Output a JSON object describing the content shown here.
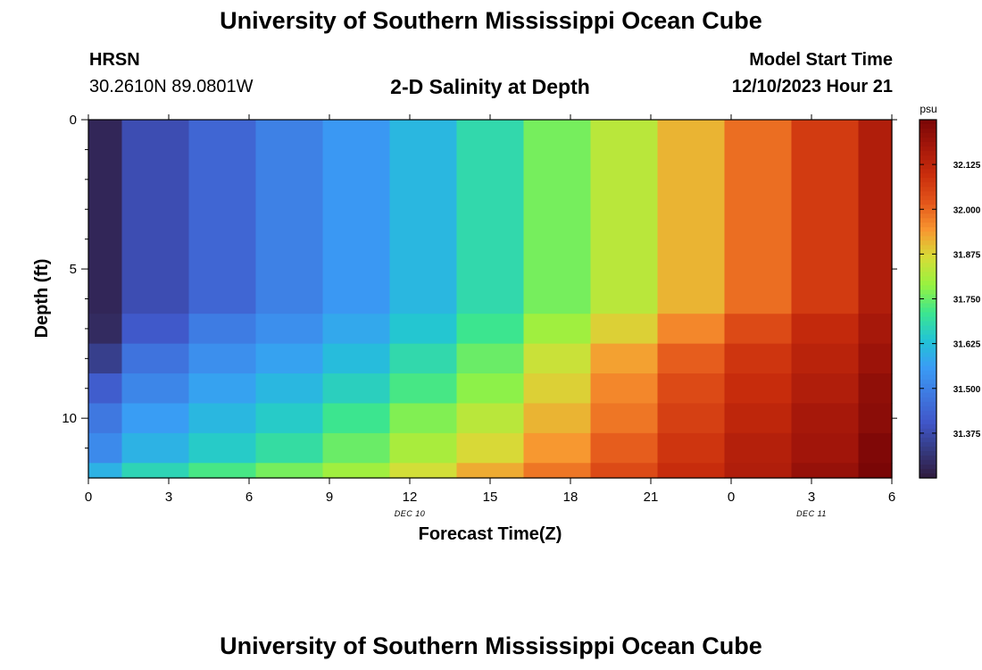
{
  "header": {
    "title": "University of Southern Mississippi Ocean Cube",
    "station_code": "HRSN",
    "coordinates": "30.2610N  89.0801W",
    "plot_subtitle": "2-D Salinity at Depth",
    "model_start_label": "Model Start Time",
    "model_start_value": "12/10/2023 Hour 21"
  },
  "footer": {
    "title": "University of Southern Mississippi Ocean Cube"
  },
  "colors": {
    "palette": [
      "#301a3e",
      "#353a80",
      "#4056c8",
      "#3f78e0",
      "#3a9cf5",
      "#22c4d6",
      "#3de68e",
      "#97f240",
      "#d6dd37",
      "#f89630",
      "#e3551a",
      "#c92d0c",
      "#a5170a",
      "#7a0606"
    ]
  },
  "chart_data": {
    "type": "heatmap",
    "title": "2-D Salinity at Depth",
    "xlabel": "Forecast Time(Z)",
    "ylabel": "Depth (ft)",
    "colorbar_unit": "psu",
    "x_tick_labels": [
      "0",
      "3",
      "6",
      "9",
      "12",
      "15",
      "18",
      "21",
      "0",
      "3",
      "6"
    ],
    "x_tick_hours": [
      0,
      3,
      6,
      9,
      12,
      15,
      18,
      21,
      24,
      27,
      30
    ],
    "x_date_labels": [
      {
        "text": "DEC 10",
        "hour": 12
      },
      {
        "text": "DEC 11",
        "hour": 27
      }
    ],
    "xlim": [
      0,
      30
    ],
    "y_tick_labels": [
      "0",
      "5",
      "10"
    ],
    "y_tick_values": [
      0,
      5,
      10
    ],
    "ylim": [
      0,
      12
    ],
    "y_minor_ticks": [
      1,
      2,
      3,
      4,
      6,
      7,
      8,
      9,
      11
    ],
    "colorbar_ticks": [
      31.375,
      31.5,
      31.625,
      31.75,
      31.875,
      32.0,
      32.125
    ],
    "colorbar_tick_labels": [
      "31.375",
      "31.500",
      "31.625",
      "31.750",
      "31.875",
      "32.000",
      "32.125"
    ],
    "colorbar_range": [
      31.25,
      32.25
    ],
    "time_bins_hours": [
      0,
      1.25,
      3.75,
      6.25,
      8.75,
      11.25,
      13.75,
      16.25,
      18.75,
      21.25,
      23.75,
      26.25,
      28.75,
      30
    ],
    "depth_bins_ft": [
      0,
      6.5,
      7.5,
      8.5,
      9.5,
      10.5,
      11.5,
      12
    ],
    "salinity_psu": [
      [
        31.28,
        31.38,
        31.44,
        31.5,
        31.55,
        31.61,
        31.68,
        31.76,
        31.83,
        31.91,
        31.99,
        32.07,
        32.15
      ],
      [
        31.29,
        31.41,
        31.49,
        31.53,
        31.58,
        31.64,
        31.71,
        31.8,
        31.88,
        31.96,
        32.04,
        32.11,
        32.17
      ],
      [
        31.34,
        31.47,
        31.53,
        31.57,
        31.62,
        31.68,
        31.75,
        31.85,
        31.93,
        32.01,
        32.08,
        32.13,
        32.19
      ],
      [
        31.42,
        31.51,
        31.57,
        31.61,
        31.66,
        31.72,
        31.78,
        31.88,
        31.96,
        32.04,
        32.1,
        32.15,
        32.21
      ],
      [
        31.48,
        31.56,
        31.61,
        31.65,
        31.71,
        31.77,
        31.83,
        31.91,
        31.98,
        32.06,
        32.12,
        32.17,
        32.22
      ],
      [
        31.52,
        31.6,
        31.65,
        31.69,
        31.75,
        31.81,
        31.87,
        31.94,
        32.01,
        32.08,
        32.14,
        32.18,
        32.24
      ],
      [
        31.6,
        31.67,
        31.72,
        31.76,
        31.8,
        31.86,
        31.92,
        31.98,
        32.04,
        32.1,
        32.15,
        32.2,
        32.25
      ]
    ]
  }
}
